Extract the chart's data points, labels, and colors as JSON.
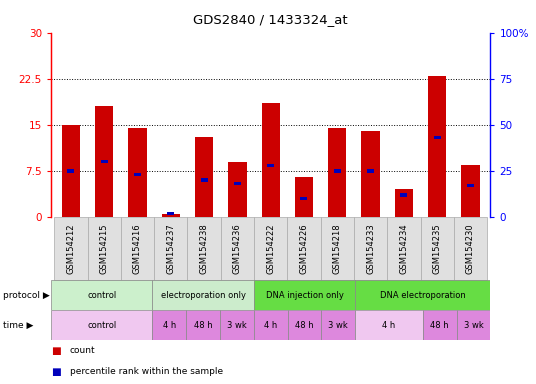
{
  "title": "GDS2840 / 1433324_at",
  "samples": [
    "GSM154212",
    "GSM154215",
    "GSM154216",
    "GSM154237",
    "GSM154238",
    "GSM154236",
    "GSM154222",
    "GSM154226",
    "GSM154218",
    "GSM154233",
    "GSM154234",
    "GSM154235",
    "GSM154230"
  ],
  "count_values": [
    15.0,
    18.0,
    14.5,
    0.5,
    13.0,
    9.0,
    18.5,
    6.5,
    14.5,
    14.0,
    4.5,
    23.0,
    8.5
  ],
  "percentile_values": [
    25,
    30,
    23,
    2,
    20,
    18,
    28,
    10,
    25,
    25,
    12,
    43,
    17
  ],
  "ylim_left": [
    0,
    30
  ],
  "ylim_right": [
    0,
    100
  ],
  "yticks_left": [
    0,
    7.5,
    15,
    22.5,
    30
  ],
  "yticks_right": [
    0,
    25,
    50,
    75,
    100
  ],
  "ytick_labels_left": [
    "0",
    "7.5",
    "15",
    "22.5",
    "30"
  ],
  "ytick_labels_right": [
    "0",
    "25",
    "50",
    "75",
    "100%"
  ],
  "bar_color": "#cc0000",
  "percentile_color": "#0000bb",
  "protocol_groups": [
    {
      "label": "control",
      "start": 0,
      "end": 3,
      "color": "#ccf0cc"
    },
    {
      "label": "electroporation only",
      "start": 3,
      "end": 6,
      "color": "#cceccc"
    },
    {
      "label": "DNA injection only",
      "start": 6,
      "end": 9,
      "color": "#66dd44"
    },
    {
      "label": "DNA electroporation",
      "start": 9,
      "end": 13,
      "color": "#66dd44"
    }
  ],
  "time_groups": [
    {
      "label": "control",
      "start": 0,
      "end": 3,
      "color": "#f0c8f0"
    },
    {
      "label": "4 h",
      "start": 3,
      "end": 4,
      "color": "#dd88dd"
    },
    {
      "label": "48 h",
      "start": 4,
      "end": 5,
      "color": "#dd88dd"
    },
    {
      "label": "3 wk",
      "start": 5,
      "end": 6,
      "color": "#dd88dd"
    },
    {
      "label": "4 h",
      "start": 6,
      "end": 7,
      "color": "#dd88dd"
    },
    {
      "label": "48 h",
      "start": 7,
      "end": 8,
      "color": "#dd88dd"
    },
    {
      "label": "3 wk",
      "start": 8,
      "end": 9,
      "color": "#dd88dd"
    },
    {
      "label": "4 h",
      "start": 9,
      "end": 11,
      "color": "#f0c8f0"
    },
    {
      "label": "48 h",
      "start": 11,
      "end": 12,
      "color": "#dd88dd"
    },
    {
      "label": "3 wk",
      "start": 12,
      "end": 13,
      "color": "#dd88dd"
    }
  ]
}
